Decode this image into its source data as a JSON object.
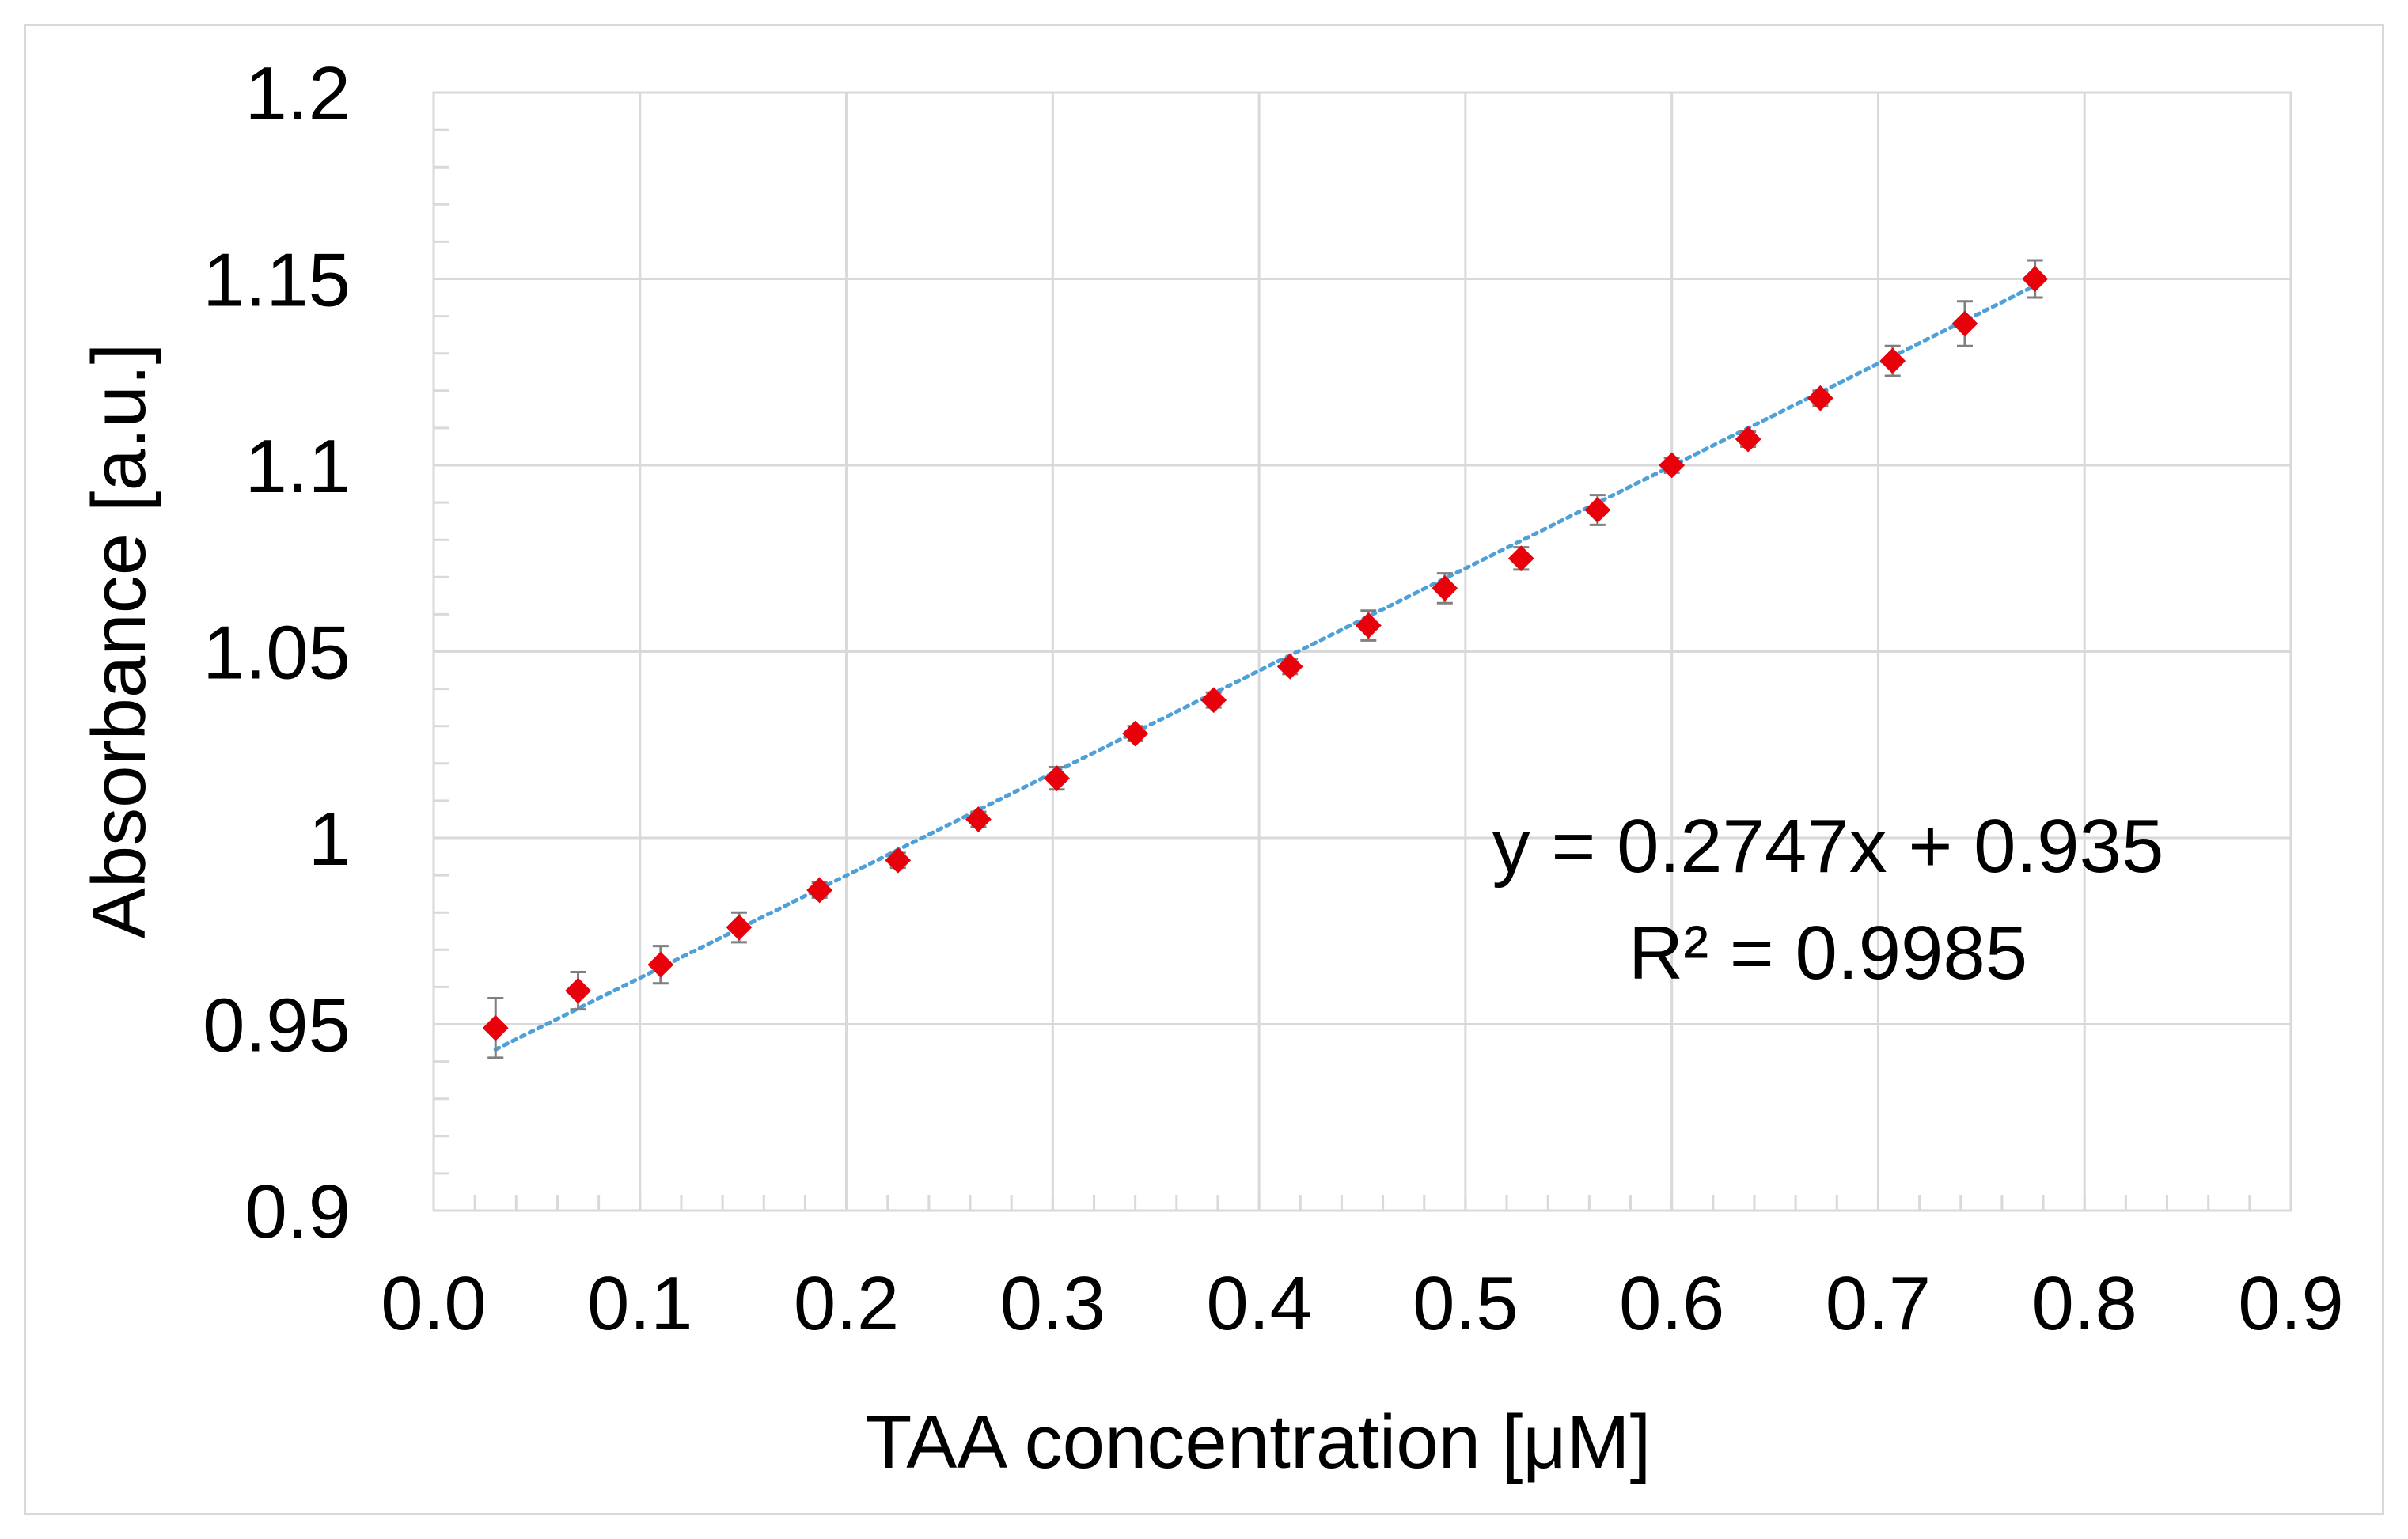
{
  "chart_data": {
    "type": "scatter",
    "title": "",
    "xlabel": "TAA concentration [μM]",
    "ylabel": "Absorbance [a.u.]",
    "xlim": [
      0.0,
      0.9
    ],
    "ylim": [
      0.9,
      1.2
    ],
    "xticks": [
      "0.0",
      "0.1",
      "0.2",
      "0.3",
      "0.4",
      "0.5",
      "0.6",
      "0.7",
      "0.8",
      "0.9"
    ],
    "yticks": [
      "0.9",
      "0.95",
      "1",
      "1.05",
      "1.1",
      "1.15",
      "1.2"
    ],
    "grid": true,
    "series": [
      {
        "name": "Absorbance",
        "marker": "diamond",
        "color": "#e8000b",
        "x": [
          0.03,
          0.07,
          0.11,
          0.148,
          0.187,
          0.225,
          0.264,
          0.302,
          0.34,
          0.378,
          0.415,
          0.453,
          0.49,
          0.527,
          0.564,
          0.6,
          0.637,
          0.672,
          0.707,
          0.742,
          0.776
        ],
        "y": [
          0.949,
          0.959,
          0.966,
          0.976,
          0.986,
          0.994,
          1.005,
          1.016,
          1.028,
          1.037,
          1.046,
          1.057,
          1.067,
          1.075,
          1.088,
          1.1,
          1.107,
          1.118,
          1.128,
          1.138,
          1.15
        ],
        "error": [
          0.008,
          0.005,
          0.005,
          0.004,
          0.002,
          0.002,
          0.002,
          0.003,
          0.002,
          0.002,
          0.002,
          0.004,
          0.004,
          0.003,
          0.004,
          0.002,
          0.002,
          0.002,
          0.004,
          0.006,
          0.005
        ]
      }
    ],
    "trendline": {
      "slope": 0.2747,
      "intercept": 0.935,
      "color": "#4ea0d8",
      "style": "dotted",
      "equation_label": "y = 0.2747x + 0.935",
      "r2_label": "R² = 0.9985"
    }
  }
}
